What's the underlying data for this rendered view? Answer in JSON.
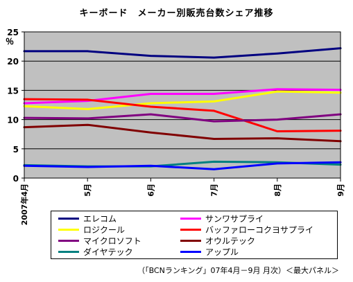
{
  "chart_data": {
    "type": "line",
    "title": "キーボード　メーカー別販売台数シェア推移",
    "ylabel": "％",
    "ylim": [
      0,
      25
    ],
    "yticks": [
      "0",
      "5",
      "10",
      "15",
      "20",
      "25"
    ],
    "categories": [
      "2007年4月",
      "5月",
      "6月",
      "7月",
      "8月",
      "9月"
    ],
    "grid": true,
    "background": "#c0c0c0",
    "legend_position": "bottom",
    "series": [
      {
        "name": "エレコム",
        "color": "#000080",
        "values": [
          21.7,
          21.7,
          20.9,
          20.6,
          21.3,
          22.2
        ]
      },
      {
        "name": "サンワサプライ",
        "color": "#ff00ff",
        "values": [
          12.8,
          13.2,
          14.4,
          14.4,
          15.2,
          15.1
        ]
      },
      {
        "name": "ロジクール",
        "color": "#ffff00",
        "values": [
          12.3,
          11.8,
          12.8,
          13.1,
          14.8,
          14.6
        ]
      },
      {
        "name": "バッファローコクヨサプライ",
        "color": "#ff0000",
        "values": [
          13.5,
          13.4,
          12.2,
          11.5,
          8.0,
          8.1
        ]
      },
      {
        "name": "マイクロソフト",
        "color": "#800080",
        "values": [
          10.3,
          10.2,
          10.9,
          9.7,
          10.0,
          10.9
        ]
      },
      {
        "name": "オウルテック",
        "color": "#800000",
        "values": [
          8.7,
          9.1,
          7.8,
          6.7,
          6.8,
          6.3
        ]
      },
      {
        "name": "ダイヤテック",
        "color": "#008080",
        "values": [
          2.2,
          2.0,
          2.0,
          2.8,
          2.7,
          2.3
        ]
      },
      {
        "name": "アップル",
        "color": "#0000ff",
        "values": [
          2.1,
          1.9,
          2.1,
          1.5,
          2.5,
          2.7
        ]
      }
    ]
  },
  "footnote": "（「BCNランキング」07年4月－9月 月次）＜最大パネル＞"
}
